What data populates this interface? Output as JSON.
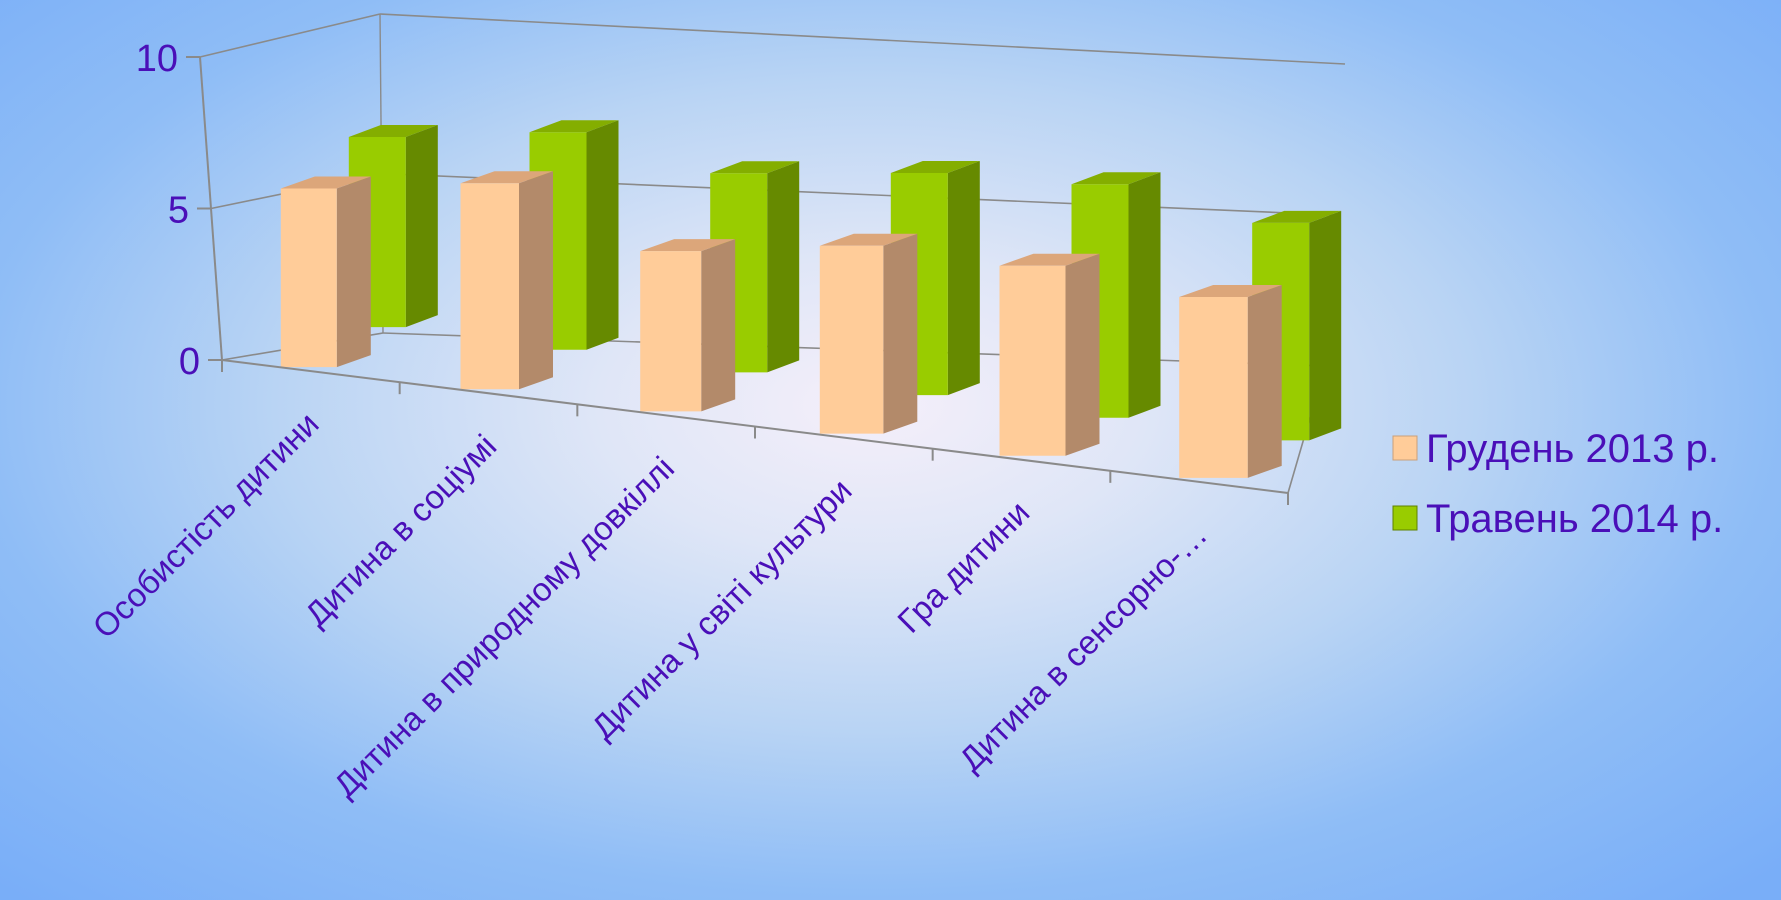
{
  "chart_data": {
    "type": "bar",
    "categories": [
      "Особистість дитини",
      "Дитина в соціумі",
      "Дитина в природному довкіллі",
      "Дитина у світі культури",
      "Гра дитини",
      "Дитина в сенсорно-…"
    ],
    "series": [
      {
        "name": "Грудень 2013 р.",
        "values": [
          7.8,
          9.0,
          7.0,
          8.2,
          8.3,
          7.9
        ]
      },
      {
        "name": "Травень 2014 р.",
        "values": [
          8.3,
          9.5,
          8.7,
          9.7,
          10.2,
          9.5
        ]
      }
    ],
    "ylim": [
      0,
      10
    ],
    "yticks": [
      0,
      5,
      10
    ],
    "grid": true,
    "legend": "right",
    "colors": {
      "series_1": "#ffcc99",
      "series_2": "#99cc00",
      "text": "#4a0fb8",
      "axis": "#8a8a8a"
    }
  }
}
